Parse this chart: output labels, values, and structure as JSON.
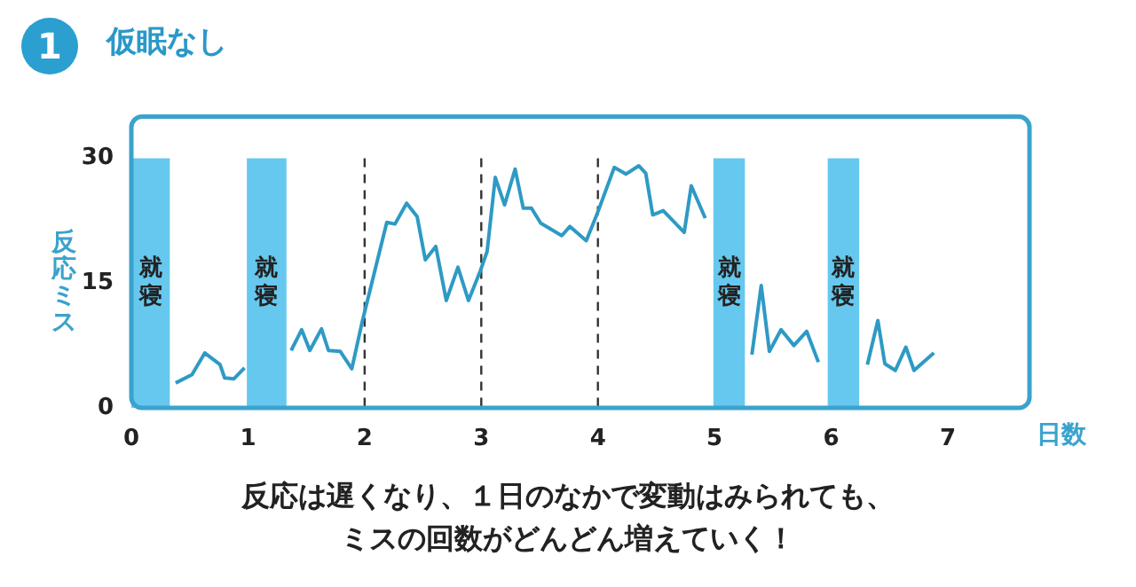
{
  "chart_data": {
    "type": "line",
    "title": "仮眠なし",
    "ylabel": "反応ミス",
    "xlabel": "日数",
    "annotations": [
      "1",
      "反応は遅くなり、１日のなかで変動はみられても、",
      "ミスの回数がどんどん増えていく！"
    ],
    "xlim": [
      0,
      7.7
    ],
    "xticks": [
      0,
      1,
      2,
      3,
      4,
      5,
      6,
      7
    ],
    "ylim": [
      0,
      35
    ],
    "yticks": [
      0,
      15,
      30
    ],
    "grid": false,
    "legend": false,
    "marker": "none",
    "line_style": "solid",
    "series": [
      {
        "color": "#2e9ac4",
        "x": [
          0.38,
          0.52,
          0.63,
          0.76,
          0.8,
          0.88,
          0.97,
          1.15,
          1.37,
          1.46,
          1.53,
          1.63,
          1.69,
          1.79,
          1.89,
          1.98,
          2.19,
          2.26,
          2.36,
          2.45,
          2.52,
          2.61,
          2.7,
          2.8,
          2.89,
          2.99,
          3.05,
          3.12,
          3.2,
          3.29,
          3.36,
          3.43,
          3.51,
          3.69,
          3.76,
          3.9,
          3.99,
          4.14,
          4.24,
          4.35,
          4.41,
          4.47,
          4.56,
          4.74,
          4.8,
          4.92,
          5.1,
          5.32,
          5.4,
          5.47,
          5.57,
          5.68,
          5.79,
          5.89,
          6.1,
          6.31,
          6.4,
          6.46,
          6.55,
          6.64,
          6.71,
          6.88
        ],
        "values": [
          3.0,
          4.0,
          6.6,
          5.2,
          3.6,
          3.5,
          4.8,
          null,
          6.9,
          9.4,
          6.9,
          9.5,
          6.9,
          6.8,
          4.7,
          10.4,
          22.3,
          22.1,
          24.6,
          23.0,
          17.8,
          19.4,
          12.9,
          16.9,
          12.9,
          16.4,
          18.8,
          27.7,
          24.4,
          28.7,
          24.0,
          24.0,
          22.2,
          20.7,
          21.8,
          20.1,
          23.2,
          28.9,
          28.1,
          29.1,
          28.2,
          23.2,
          23.7,
          21.1,
          26.7,
          22.8,
          null,
          6.4,
          14.7,
          6.8,
          9.4,
          7.5,
          9.2,
          5.5,
          null,
          5.2,
          10.5,
          5.3,
          4.5,
          7.3,
          4.5,
          6.6
        ]
      }
    ],
    "bands": [
      {
        "axis": "x",
        "from": 0,
        "to": 0.33,
        "label": "就寝",
        "color": "#66c8ee"
      },
      {
        "axis": "x",
        "from": 0.99,
        "to": 1.33,
        "label": "就寝",
        "color": "#66c8ee"
      },
      {
        "axis": "x",
        "from": 4.99,
        "to": 5.26,
        "label": "就寝",
        "color": "#66c8ee"
      },
      {
        "axis": "x",
        "from": 5.97,
        "to": 6.24,
        "label": "就寝",
        "color": "#66c8ee"
      }
    ],
    "ref_lines": [
      {
        "axis": "x",
        "value": 2,
        "color": "#333333",
        "line_style": "dashed"
      },
      {
        "axis": "x",
        "value": 3,
        "color": "#333333",
        "line_style": "dashed"
      },
      {
        "axis": "x",
        "value": 4,
        "color": "#333333",
        "line_style": "dashed"
      }
    ]
  }
}
